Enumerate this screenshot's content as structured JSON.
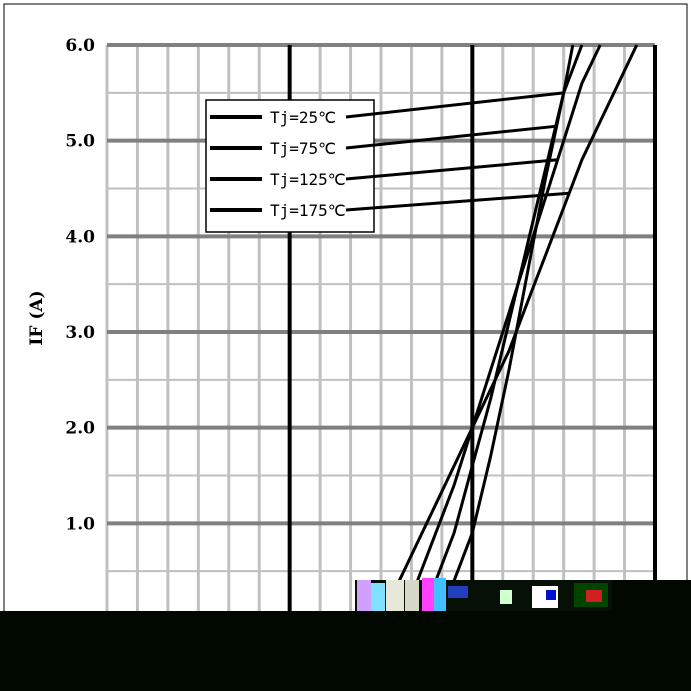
{
  "chart_data": {
    "type": "line",
    "title": "",
    "xlabel": "",
    "ylabel": "IF (A)",
    "ylim": [
      0,
      6
    ],
    "y_ticks": [
      "6.0",
      "5.0",
      "4.0",
      "3.0",
      "2.0",
      "1.0"
    ],
    "xlim": [
      0,
      3
    ],
    "grid": true,
    "legend_position": "top-left",
    "series": [
      {
        "name": "Tj=25℃",
        "x": [
          1.7,
          1.8,
          1.9,
          2.0,
          2.1,
          2.2,
          2.3,
          2.4,
          2.5,
          2.55
        ],
        "y": [
          0.0,
          0.1,
          0.4,
          0.9,
          1.7,
          2.6,
          3.6,
          4.6,
          5.5,
          6.0
        ]
      },
      {
        "name": "Tj=75℃",
        "x": [
          1.6,
          1.7,
          1.8,
          1.9,
          2.0,
          2.1,
          2.2,
          2.3,
          2.4,
          2.5,
          2.6
        ],
        "y": [
          0.0,
          0.1,
          0.4,
          0.9,
          1.6,
          2.3,
          3.1,
          3.9,
          4.7,
          5.5,
          6.0
        ]
      },
      {
        "name": "Tj=125℃",
        "x": [
          1.5,
          1.6,
          1.7,
          1.8,
          1.9,
          2.0,
          2.1,
          2.2,
          2.3,
          2.4,
          2.5,
          2.6,
          2.7
        ],
        "y": [
          0.0,
          0.1,
          0.4,
          0.9,
          1.4,
          2.0,
          2.6,
          3.2,
          3.8,
          4.4,
          5.0,
          5.6,
          6.0
        ]
      },
      {
        "name": "Tj=175℃",
        "x": [
          1.4,
          1.5,
          1.6,
          1.7,
          1.8,
          1.9,
          2.0,
          2.1,
          2.2,
          2.3,
          2.4,
          2.5,
          2.6,
          2.7,
          2.8,
          2.9
        ],
        "y": [
          0.0,
          0.1,
          0.4,
          0.8,
          1.2,
          1.6,
          2.0,
          2.4,
          2.8,
          3.3,
          3.8,
          4.3,
          4.8,
          5.2,
          5.6,
          6.0
        ]
      }
    ]
  }
}
